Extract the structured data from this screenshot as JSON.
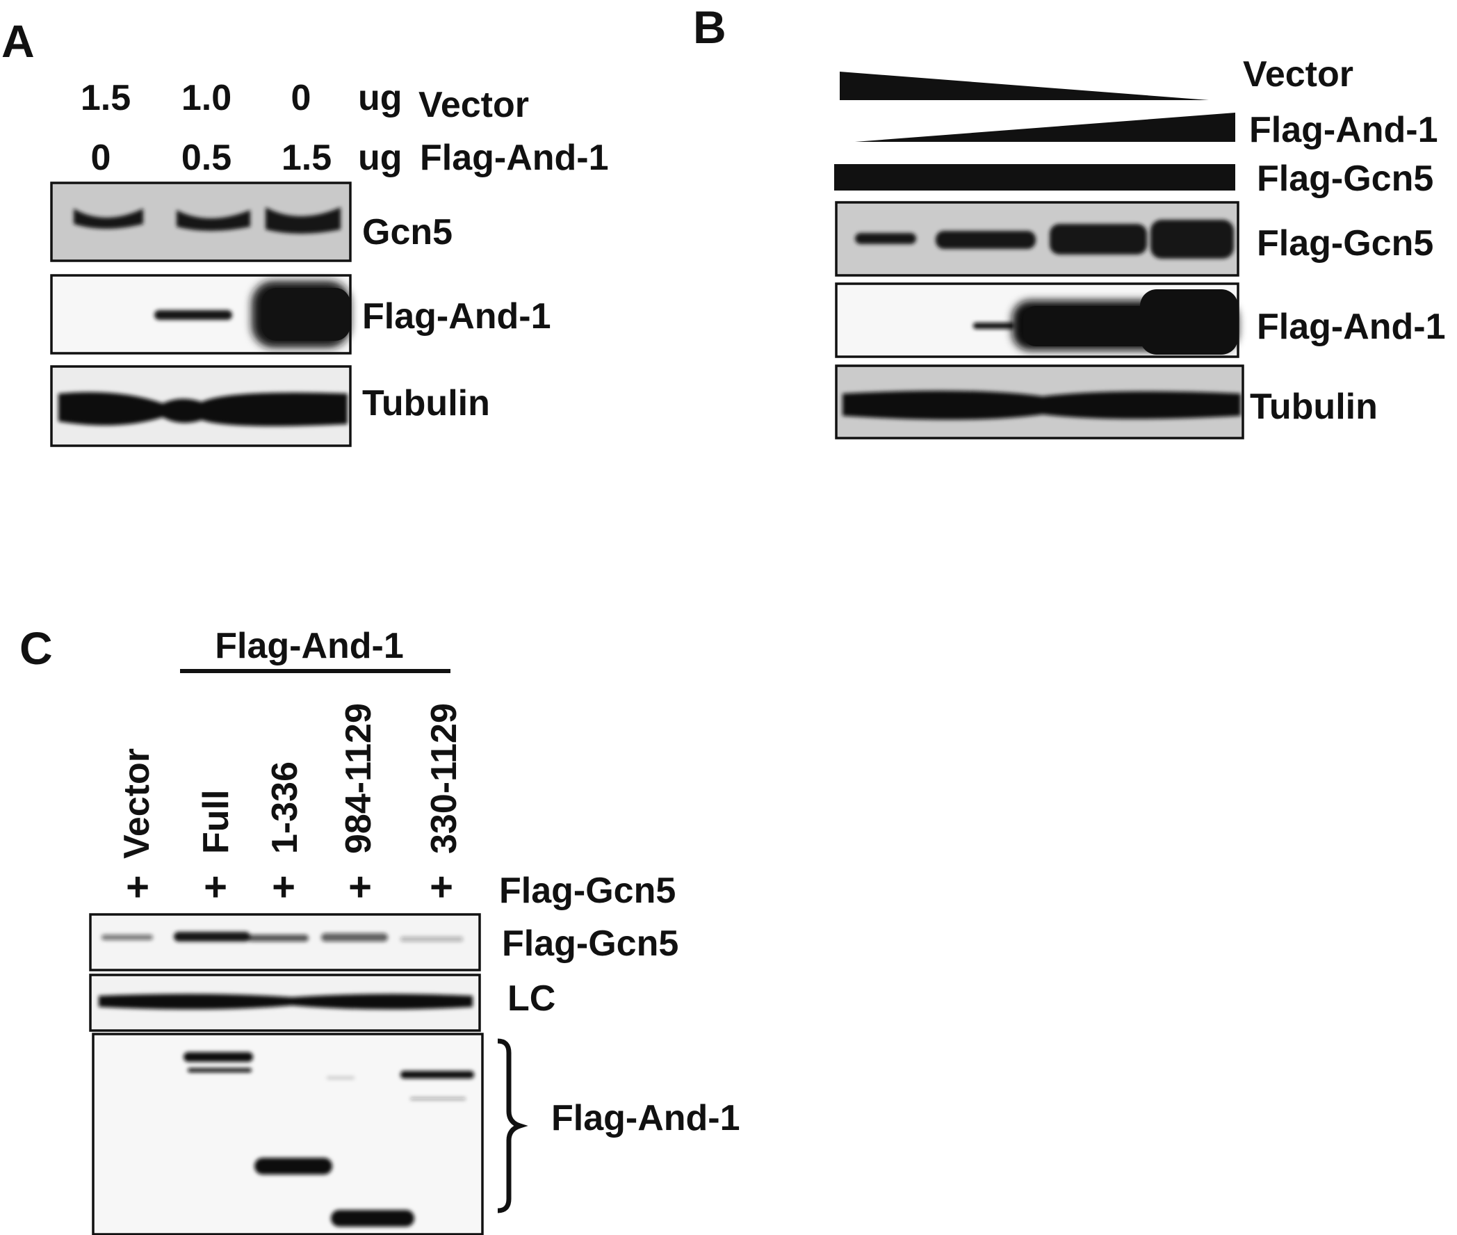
{
  "panel_a": {
    "letter": "A",
    "vector_amounts": [
      "1.5",
      "1.0",
      "0"
    ],
    "vector_unit": "ug",
    "vector_label": "Vector",
    "and1_amounts": [
      "0",
      "0.5",
      "1.5"
    ],
    "and1_unit": "ug",
    "and1_label": "Flag-And-1",
    "blots": [
      "Gcn5",
      "Flag-And-1",
      "Tubulin"
    ]
  },
  "panel_b": {
    "letter": "B",
    "treatments": [
      "Vector",
      "Flag-And-1",
      "Flag-Gcn5"
    ],
    "blots": [
      "Flag-Gcn5",
      "Flag-And-1",
      "Tubulin"
    ]
  },
  "panel_c": {
    "letter": "C",
    "group_label": "Flag-And-1",
    "lanes": [
      "Vector",
      "Full",
      "1-336",
      "984-1129",
      "330-1129"
    ],
    "plus_sign": "+",
    "cotransfected_label": "Flag-Gcn5",
    "blots": [
      "Flag-Gcn5",
      "LC",
      "Flag-And-1"
    ]
  },
  "colors": {
    "ink": "#111111",
    "membrane_grey": "#c9c9c9",
    "membrane_white": "#f7f7f7"
  }
}
